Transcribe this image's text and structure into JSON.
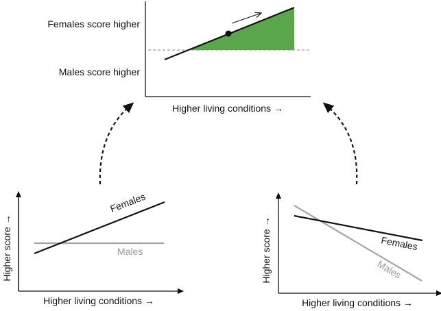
{
  "top_panel": {
    "y_label_upper": "Females score higher",
    "y_label_lower": "Males score higher",
    "x_label": "Higher living conditions →",
    "colors": {
      "shade": "#5aa64a",
      "line": "#111111",
      "baseline": "#888888"
    }
  },
  "left_panel": {
    "y_label": "Higher score →",
    "x_label": "Higher living conditions →",
    "series": [
      {
        "name": "Females",
        "color": "#111111",
        "trend": "increasing"
      },
      {
        "name": "Males",
        "color": "#a6a6a6",
        "trend": "flat"
      }
    ]
  },
  "right_panel": {
    "y_label": "Higher score →",
    "x_label": "Higher living conditions →",
    "series": [
      {
        "name": "Females",
        "color": "#111111",
        "trend": "slightly decreasing"
      },
      {
        "name": "Males",
        "color": "#a6a6a6",
        "trend": "steeply decreasing"
      }
    ]
  },
  "connectors": [
    {
      "from": "left_panel",
      "to": "top_panel",
      "style": "dashed-arrow"
    },
    {
      "from": "right_panel",
      "to": "top_panel",
      "style": "dashed-arrow"
    }
  ]
}
